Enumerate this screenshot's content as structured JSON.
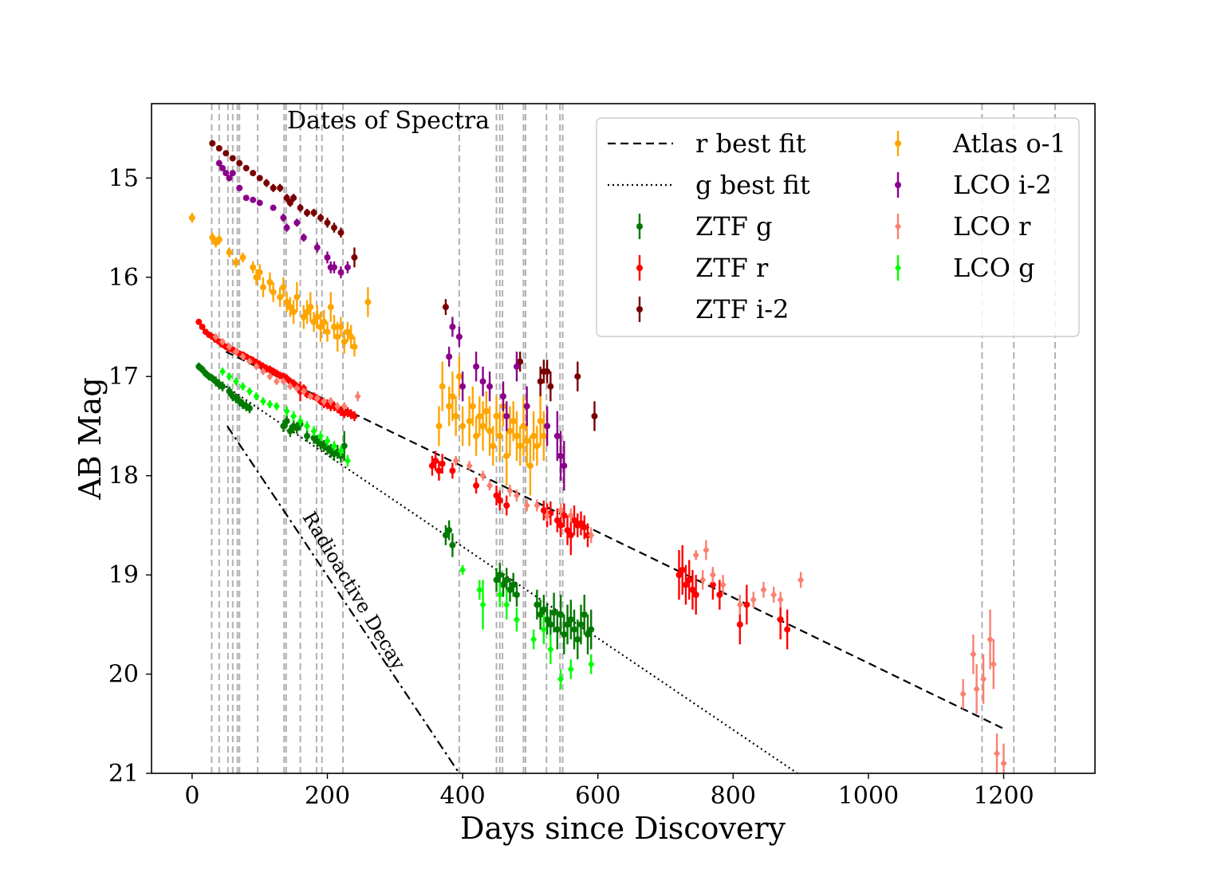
{
  "chart_data": {
    "type": "scatter",
    "xlabel": "Days since Discovery",
    "ylabel": "AB Mag",
    "xlim": [
      -60,
      1335
    ],
    "ylim": [
      21,
      14.25
    ],
    "y_inverted": true,
    "xticks": [
      0,
      200,
      400,
      600,
      800,
      1000,
      1200
    ],
    "yticks": [
      15,
      16,
      17,
      18,
      19,
      20,
      21
    ],
    "grid": false,
    "legend_position": "top-right",
    "annotations": {
      "spectra_label": "Dates of Spectra",
      "decay_label": "Radioactive Decay"
    },
    "spectra_dates": [
      29,
      40,
      53,
      60,
      67,
      70,
      97,
      136,
      139,
      160,
      184,
      192,
      223,
      395,
      450,
      455,
      459,
      490,
      493,
      524,
      544,
      548,
      1168,
      1215,
      1276
    ],
    "lines": [
      {
        "name": "r best fit",
        "style": "dashed",
        "color": "#000000",
        "x": [
          50,
          1200
        ],
        "y": [
          16.75,
          20.55
        ]
      },
      {
        "name": "g best fit",
        "style": "dotted",
        "color": "#000000",
        "x": [
          50,
          895
        ],
        "y": [
          17.1,
          21.0
        ]
      },
      {
        "name": "Radioactive Decay",
        "style": "dashdot",
        "color": "#000000",
        "x": [
          52,
          395
        ],
        "y": [
          17.5,
          21.0
        ]
      }
    ],
    "series": [
      {
        "name": "ZTF g",
        "color": "#007a00",
        "marker": "circle",
        "x": [
          10,
          15,
          20,
          25,
          30,
          35,
          40,
          45,
          55,
          60,
          65,
          70,
          75,
          80,
          85,
          135,
          140,
          145,
          150,
          155,
          160,
          170,
          180,
          185,
          190,
          195,
          200,
          205,
          210,
          215,
          220,
          225,
          375,
          380,
          385,
          450,
          455,
          460,
          465,
          470,
          475,
          480,
          510,
          515,
          520,
          525,
          530,
          535,
          540,
          545,
          550,
          555,
          560,
          565,
          570,
          575,
          580,
          585,
          590
        ],
        "y": [
          16.9,
          16.93,
          16.97,
          17.0,
          17.02,
          17.05,
          17.08,
          17.1,
          17.15,
          17.2,
          17.22,
          17.25,
          17.28,
          17.3,
          17.32,
          17.5,
          17.45,
          17.55,
          17.5,
          17.52,
          17.48,
          17.6,
          17.62,
          17.65,
          17.68,
          17.7,
          17.72,
          17.75,
          17.78,
          17.76,
          17.8,
          17.7,
          18.6,
          18.55,
          18.7,
          19.05,
          19.0,
          19.1,
          19.05,
          19.15,
          19.1,
          19.2,
          19.3,
          19.4,
          19.35,
          19.45,
          19.5,
          19.38,
          19.55,
          19.4,
          19.6,
          19.5,
          19.45,
          19.55,
          19.65,
          19.5,
          19.4,
          19.6,
          19.55
        ],
        "yerr": [
          0.04,
          0.04,
          0.04,
          0.04,
          0.04,
          0.05,
          0.05,
          0.05,
          0.05,
          0.05,
          0.05,
          0.05,
          0.05,
          0.05,
          0.05,
          0.06,
          0.06,
          0.06,
          0.06,
          0.06,
          0.06,
          0.06,
          0.06,
          0.06,
          0.06,
          0.06,
          0.07,
          0.07,
          0.07,
          0.07,
          0.07,
          0.15,
          0.1,
          0.1,
          0.12,
          0.12,
          0.12,
          0.12,
          0.12,
          0.12,
          0.12,
          0.12,
          0.15,
          0.15,
          0.15,
          0.15,
          0.15,
          0.2,
          0.2,
          0.2,
          0.2,
          0.2,
          0.2,
          0.2,
          0.2,
          0.2,
          0.2,
          0.2,
          0.2
        ]
      },
      {
        "name": "ZTF r",
        "color": "#ff0000",
        "marker": "circle",
        "x": [
          10,
          15,
          20,
          25,
          30,
          35,
          40,
          45,
          50,
          55,
          60,
          65,
          70,
          75,
          80,
          85,
          90,
          95,
          100,
          105,
          110,
          115,
          120,
          125,
          130,
          135,
          140,
          145,
          150,
          155,
          160,
          165,
          170,
          180,
          185,
          190,
          195,
          200,
          205,
          210,
          215,
          220,
          225,
          230,
          235,
          240,
          355,
          360,
          365,
          370,
          385,
          420,
          450,
          455,
          465,
          520,
          525,
          530,
          540,
          545,
          550,
          555,
          560,
          565,
          570,
          575,
          580,
          585,
          720,
          725,
          730,
          735,
          740,
          745,
          770,
          780,
          810,
          820,
          870,
          880
        ],
        "y": [
          16.45,
          16.5,
          16.55,
          16.58,
          16.6,
          16.63,
          16.65,
          16.68,
          16.7,
          16.72,
          16.73,
          16.75,
          16.77,
          16.78,
          16.8,
          16.82,
          16.84,
          16.86,
          16.88,
          16.9,
          16.92,
          16.93,
          16.95,
          16.97,
          16.99,
          17.0,
          17.02,
          17.05,
          17.07,
          17.1,
          17.15,
          17.12,
          17.18,
          17.2,
          17.22,
          17.25,
          17.27,
          17.28,
          17.3,
          17.3,
          17.32,
          17.35,
          17.37,
          17.36,
          17.38,
          17.4,
          17.9,
          17.85,
          17.95,
          17.88,
          17.95,
          18.1,
          18.2,
          18.25,
          18.3,
          18.35,
          18.4,
          18.38,
          18.45,
          18.5,
          18.4,
          18.55,
          18.6,
          18.45,
          18.5,
          18.48,
          18.52,
          18.6,
          19.0,
          18.95,
          19.1,
          19.05,
          19.15,
          19.2,
          19.1,
          19.2,
          19.5,
          19.3,
          19.45,
          19.55
        ],
        "yerr": [
          0.03,
          0.03,
          0.03,
          0.03,
          0.03,
          0.03,
          0.03,
          0.03,
          0.03,
          0.03,
          0.03,
          0.03,
          0.03,
          0.03,
          0.03,
          0.03,
          0.04,
          0.04,
          0.04,
          0.04,
          0.04,
          0.04,
          0.04,
          0.04,
          0.04,
          0.04,
          0.04,
          0.04,
          0.04,
          0.04,
          0.1,
          0.04,
          0.04,
          0.04,
          0.04,
          0.04,
          0.05,
          0.05,
          0.05,
          0.05,
          0.05,
          0.05,
          0.05,
          0.05,
          0.05,
          0.05,
          0.1,
          0.1,
          0.1,
          0.1,
          0.08,
          0.08,
          0.1,
          0.1,
          0.1,
          0.1,
          0.12,
          0.12,
          0.12,
          0.12,
          0.12,
          0.15,
          0.2,
          0.15,
          0.12,
          0.12,
          0.12,
          0.12,
          0.25,
          0.25,
          0.2,
          0.2,
          0.2,
          0.2,
          0.15,
          0.15,
          0.2,
          0.2,
          0.2,
          0.2
        ]
      },
      {
        "name": "ZTF i-2",
        "color": "#7a0000",
        "marker": "circle",
        "x": [
          30,
          40,
          50,
          60,
          70,
          80,
          90,
          100,
          110,
          120,
          130,
          140,
          145,
          150,
          160,
          170,
          180,
          190,
          200,
          210,
          220,
          240,
          375,
          485,
          515,
          520,
          525,
          530,
          570,
          595
        ],
        "y": [
          14.65,
          14.7,
          14.75,
          14.8,
          14.85,
          14.9,
          14.95,
          15.0,
          15.05,
          15.1,
          15.1,
          15.2,
          15.25,
          15.2,
          15.3,
          15.35,
          15.35,
          15.4,
          15.45,
          15.5,
          15.55,
          15.8,
          16.3,
          16.85,
          17.05,
          16.95,
          16.95,
          17.1,
          17.0,
          17.4
        ],
        "yerr": [
          0.03,
          0.03,
          0.03,
          0.03,
          0.03,
          0.03,
          0.03,
          0.03,
          0.04,
          0.04,
          0.04,
          0.04,
          0.04,
          0.04,
          0.04,
          0.04,
          0.04,
          0.04,
          0.05,
          0.05,
          0.05,
          0.1,
          0.08,
          0.1,
          0.15,
          0.12,
          0.12,
          0.15,
          0.15,
          0.15
        ]
      },
      {
        "name": "Atlas o-1",
        "color": "#ffa500",
        "marker": "circle",
        "x": [
          0,
          30,
          35,
          40,
          55,
          65,
          75,
          90,
          95,
          100,
          105,
          115,
          120,
          130,
          135,
          140,
          145,
          150,
          155,
          165,
          170,
          175,
          180,
          185,
          190,
          195,
          200,
          205,
          210,
          215,
          220,
          225,
          230,
          235,
          240,
          260,
          365,
          370,
          380,
          385,
          390,
          395,
          400,
          410,
          415,
          420,
          425,
          430,
          435,
          440,
          445,
          450,
          455,
          460,
          465,
          470,
          475,
          480,
          485,
          490,
          495,
          500,
          505,
          510,
          515,
          520
        ],
        "y": [
          15.4,
          15.6,
          15.65,
          15.62,
          15.75,
          15.85,
          15.8,
          15.9,
          16.0,
          15.95,
          16.1,
          16.05,
          16.15,
          16.2,
          16.1,
          16.25,
          16.3,
          16.35,
          16.2,
          16.4,
          16.35,
          16.3,
          16.45,
          16.4,
          16.5,
          16.45,
          16.55,
          16.3,
          16.5,
          16.6,
          16.5,
          16.65,
          16.55,
          16.6,
          16.7,
          16.25,
          17.5,
          17.1,
          17.3,
          17.2,
          17.4,
          17.0,
          17.5,
          17.45,
          17.3,
          17.6,
          17.4,
          17.5,
          17.35,
          17.55,
          17.7,
          17.4,
          17.6,
          17.3,
          17.8,
          17.55,
          17.45,
          17.6,
          17.7,
          17.5,
          17.65,
          17.9,
          17.6,
          17.7,
          17.45,
          17.6
        ],
        "yerr": [
          0.05,
          0.05,
          0.05,
          0.05,
          0.05,
          0.05,
          0.05,
          0.06,
          0.08,
          0.08,
          0.1,
          0.1,
          0.1,
          0.1,
          0.1,
          0.1,
          0.1,
          0.12,
          0.15,
          0.12,
          0.12,
          0.15,
          0.1,
          0.12,
          0.15,
          0.12,
          0.1,
          0.15,
          0.12,
          0.15,
          0.1,
          0.12,
          0.1,
          0.12,
          0.1,
          0.15,
          0.2,
          0.25,
          0.2,
          0.25,
          0.2,
          0.2,
          0.2,
          0.25,
          0.2,
          0.2,
          0.2,
          0.25,
          0.2,
          0.25,
          0.2,
          0.2,
          0.25,
          0.2,
          0.3,
          0.25,
          0.2,
          0.25,
          0.2,
          0.3,
          0.25,
          0.3,
          0.25,
          0.2,
          0.25,
          0.25
        ]
      },
      {
        "name": "LCO i-2",
        "color": "#8b008b",
        "marker": "circle",
        "x": [
          40,
          45,
          50,
          55,
          60,
          70,
          80,
          90,
          100,
          120,
          135,
          140,
          155,
          165,
          185,
          200,
          205,
          210,
          220,
          230,
          380,
          385,
          395,
          400,
          420,
          430,
          440,
          460,
          465,
          480,
          495,
          525,
          540,
          545,
          550
        ],
        "y": [
          14.85,
          14.9,
          14.95,
          15.0,
          14.95,
          15.1,
          15.2,
          15.22,
          15.25,
          15.3,
          15.4,
          15.5,
          15.45,
          15.6,
          15.7,
          15.8,
          15.9,
          15.9,
          15.95,
          15.9,
          16.8,
          16.5,
          16.6,
          17.1,
          16.9,
          17.05,
          17.1,
          17.2,
          17.4,
          16.9,
          17.3,
          17.5,
          17.6,
          17.8,
          17.9
        ],
        "yerr": [
          0.03,
          0.03,
          0.03,
          0.03,
          0.03,
          0.03,
          0.03,
          0.03,
          0.03,
          0.03,
          0.04,
          0.04,
          0.04,
          0.04,
          0.05,
          0.06,
          0.06,
          0.06,
          0.06,
          0.06,
          0.1,
          0.1,
          0.1,
          0.15,
          0.15,
          0.15,
          0.15,
          0.15,
          0.15,
          0.15,
          0.2,
          0.2,
          0.25,
          0.25,
          0.25
        ]
      },
      {
        "name": "LCO r",
        "color": "#fa8072",
        "marker": "diamond",
        "x": [
          35,
          45,
          55,
          65,
          75,
          85,
          95,
          105,
          115,
          125,
          135,
          145,
          155,
          165,
          175,
          185,
          195,
          205,
          215,
          225,
          245,
          390,
          410,
          430,
          440,
          470,
          480,
          495,
          510,
          525,
          545,
          560,
          590,
          745,
          755,
          760,
          770,
          785,
          810,
          830,
          845,
          860,
          870,
          900,
          1140,
          1155,
          1160,
          1170,
          1180,
          1185,
          1190,
          1200
        ],
        "y": [
          16.6,
          16.65,
          16.7,
          16.75,
          16.8,
          16.85,
          16.9,
          16.95,
          17.0,
          17.05,
          17.05,
          17.1,
          17.12,
          17.15,
          17.2,
          17.22,
          17.25,
          17.25,
          17.3,
          17.3,
          17.2,
          17.85,
          17.9,
          18.0,
          18.1,
          18.15,
          18.2,
          18.3,
          18.3,
          18.4,
          18.35,
          18.4,
          18.6,
          18.8,
          19.05,
          18.75,
          19.0,
          19.1,
          19.3,
          19.25,
          19.15,
          19.2,
          19.25,
          19.05,
          20.2,
          19.8,
          20.15,
          20.05,
          19.65,
          19.9,
          20.8,
          20.9
        ],
        "yerr": [
          0.03,
          0.03,
          0.03,
          0.03,
          0.03,
          0.03,
          0.03,
          0.03,
          0.03,
          0.03,
          0.03,
          0.03,
          0.03,
          0.03,
          0.03,
          0.03,
          0.04,
          0.04,
          0.04,
          0.04,
          0.05,
          0.05,
          0.05,
          0.05,
          0.05,
          0.06,
          0.06,
          0.06,
          0.06,
          0.06,
          0.07,
          0.07,
          0.08,
          0.05,
          0.1,
          0.1,
          0.08,
          0.1,
          0.1,
          0.08,
          0.08,
          0.08,
          0.08,
          0.08,
          0.15,
          0.2,
          0.25,
          0.25,
          0.3,
          0.25,
          0.2,
          0.2
        ]
      },
      {
        "name": "LCO g",
        "color": "#00ff00",
        "marker": "diamond",
        "x": [
          45,
          55,
          65,
          75,
          85,
          95,
          105,
          115,
          125,
          140,
          150,
          160,
          170,
          180,
          190,
          200,
          210,
          220,
          230,
          400,
          425,
          430,
          455,
          465,
          480,
          505,
          520,
          530,
          545,
          560,
          590
        ],
        "y": [
          16.95,
          17.0,
          17.05,
          17.1,
          17.15,
          17.2,
          17.25,
          17.28,
          17.3,
          17.35,
          17.4,
          17.45,
          17.5,
          17.55,
          17.6,
          17.65,
          17.7,
          17.75,
          17.85,
          18.95,
          19.15,
          19.3,
          19.2,
          19.3,
          19.45,
          19.65,
          19.55,
          19.75,
          20.05,
          19.95,
          19.9
        ],
        "yerr": [
          0.04,
          0.04,
          0.04,
          0.04,
          0.04,
          0.04,
          0.04,
          0.04,
          0.04,
          0.05,
          0.05,
          0.05,
          0.05,
          0.05,
          0.05,
          0.05,
          0.05,
          0.05,
          0.06,
          0.05,
          0.1,
          0.25,
          0.12,
          0.15,
          0.12,
          0.1,
          0.15,
          0.15,
          0.1,
          0.1,
          0.1
        ]
      }
    ]
  }
}
